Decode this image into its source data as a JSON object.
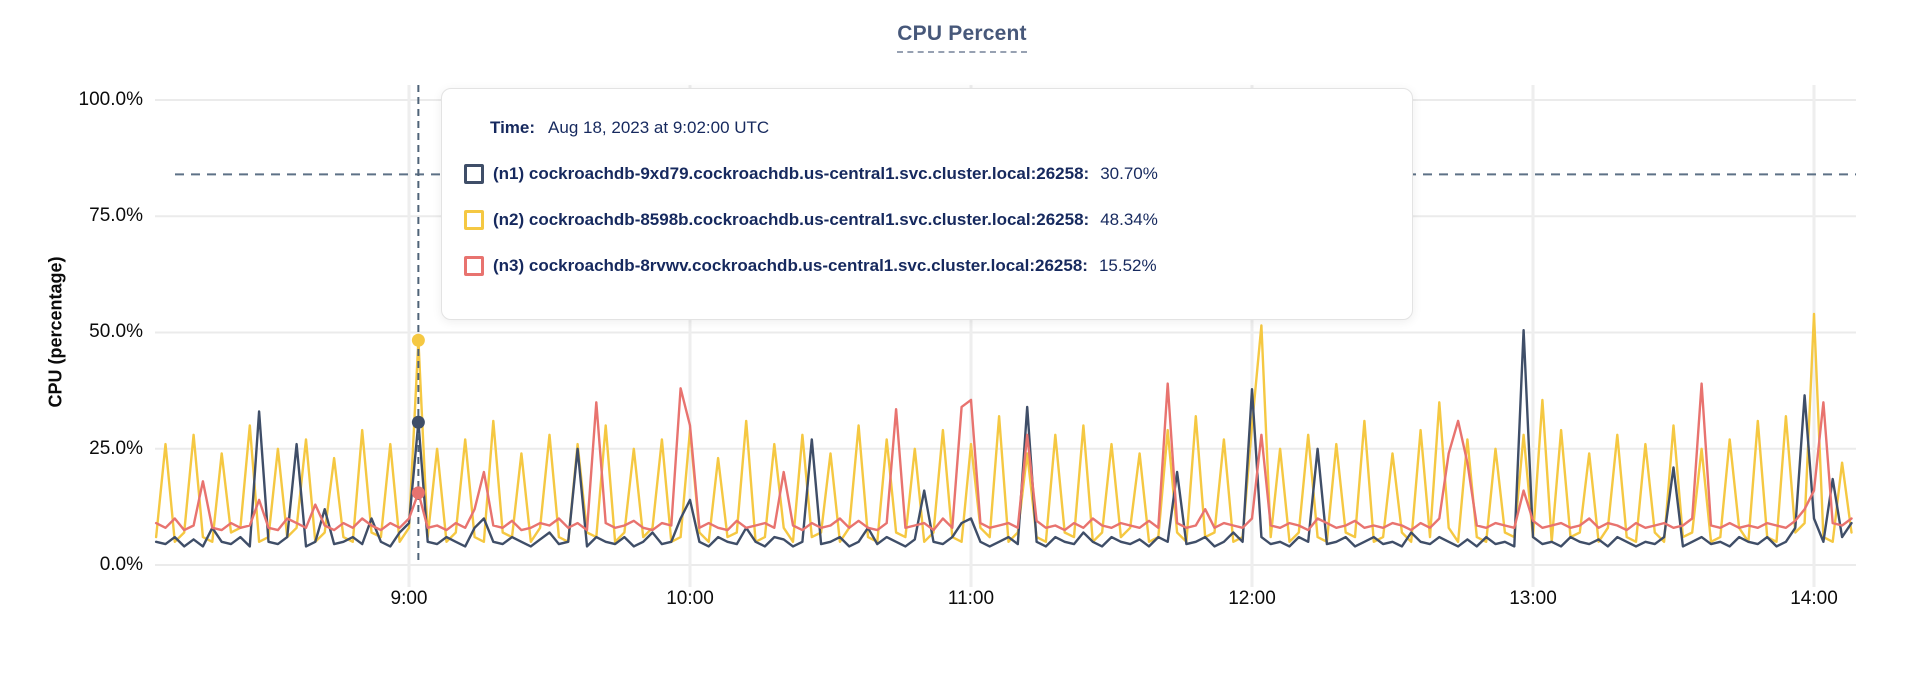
{
  "title": "CPU Percent",
  "y_axis_title": "CPU (percentage)",
  "tooltip": {
    "time_label": "Time:",
    "time_value": "Aug 18, 2023 at 9:02:00 UTC",
    "values": [
      "30.70%",
      "48.34%",
      "15.52%"
    ]
  },
  "chart_data": {
    "type": "line",
    "title": "CPU Percent",
    "xlabel": "",
    "ylabel": "CPU (percentage)",
    "ylim": [
      0,
      100
    ],
    "grid": true,
    "y_ticks": [
      "100.0%",
      "75.0%",
      "50.0%",
      "25.0%",
      "0.0%"
    ],
    "x_ticks": [
      "9:00",
      "10:00",
      "11:00",
      "12:00",
      "13:00",
      "14:00"
    ],
    "x_start": "8:06",
    "x_end": "14:08",
    "interval_minutes": 2,
    "annotations": {
      "threshold_line_percent": 84,
      "threshold_line_style": "dashed",
      "crosshair_time": "9:02",
      "crosshair_values": [
        30.7,
        48.34,
        15.52
      ]
    },
    "series": [
      {
        "name": "(n1) cockroachdb-9xd79.cockroachdb.us-central1.svc.cluster.local:26258:",
        "color": "#3f4e68",
        "values": [
          5,
          4.5,
          6,
          4,
          5.5,
          4,
          8,
          5,
          4.5,
          6,
          4,
          33,
          5,
          4.5,
          6,
          26,
          4,
          5,
          12,
          4.5,
          5,
          6,
          4.5,
          10,
          5,
          4,
          7,
          9,
          30.7,
          5,
          4.5,
          6,
          5,
          4,
          8,
          10,
          5,
          4.5,
          6,
          5,
          4,
          5.5,
          7,
          4.5,
          5,
          25,
          4,
          6,
          5,
          4.5,
          6,
          4,
          5,
          7,
          4.5,
          5,
          10,
          14,
          5,
          4,
          6,
          5,
          4.5,
          8,
          5,
          4,
          6,
          5.5,
          4,
          5,
          27,
          4.5,
          5,
          6,
          4,
          5,
          8,
          4.5,
          6,
          5,
          4,
          5.5,
          16,
          5,
          4.5,
          6,
          9,
          10,
          5,
          4,
          5,
          6,
          4.5,
          34,
          5,
          4,
          6,
          5,
          4.5,
          7,
          5,
          4,
          6,
          5,
          4.5,
          5.5,
          4,
          6,
          5,
          20,
          4.5,
          5,
          6,
          4,
          5,
          7,
          5,
          37.8,
          6,
          4.5,
          5,
          4,
          6,
          5,
          25,
          4.5,
          5,
          6,
          4,
          5,
          6,
          4.5,
          5,
          4,
          7,
          5,
          4.5,
          6,
          5,
          4,
          5.5,
          4,
          6,
          4.5,
          5,
          4,
          50.5,
          6,
          4.5,
          5,
          4,
          6,
          5,
          4.5,
          5.5,
          4,
          6,
          5,
          4,
          5,
          4.5,
          6,
          21,
          4,
          5,
          6,
          4.5,
          5,
          4,
          6,
          5,
          4.5,
          6,
          4,
          5,
          8,
          36.5,
          10,
          5,
          18.5,
          6,
          9
        ]
      },
      {
        "name": "(n2) cockroachdb-8598b.cockroachdb.us-central1.svc.cluster.local:26258:",
        "color": "#f5c842",
        "values": [
          6,
          26,
          5,
          7,
          28,
          6,
          5,
          24,
          7,
          8,
          30,
          5,
          6,
          25,
          6,
          8,
          27,
          5,
          7,
          23,
          6,
          5,
          29,
          7,
          6,
          26,
          5,
          8,
          48.34,
          6,
          25,
          5,
          7,
          27,
          6,
          5,
          31,
          7,
          6,
          24,
          5,
          8,
          28,
          6,
          5,
          26,
          7,
          6,
          30,
          5,
          7,
          25,
          6,
          8,
          27,
          5,
          6,
          29,
          7,
          5,
          23,
          6,
          7,
          31,
          5,
          6,
          26,
          8,
          5,
          28,
          6,
          7,
          24,
          5,
          8,
          30,
          6,
          5,
          27,
          7,
          6,
          25,
          5,
          7,
          29,
          6,
          5,
          26,
          8,
          6,
          32,
          5,
          7,
          24,
          6,
          5,
          28,
          7,
          6,
          30,
          5,
          7,
          26,
          6,
          8,
          24,
          5,
          6,
          29,
          7,
          5,
          32,
          6,
          7,
          27,
          5,
          6,
          30,
          51.5,
          6,
          25,
          5,
          7,
          28,
          6,
          5,
          26,
          7,
          6,
          31,
          5,
          6,
          24,
          7,
          5,
          29,
          6,
          35,
          8,
          5,
          27,
          6,
          5,
          25,
          7,
          6,
          28,
          6,
          35.5,
          5,
          29,
          6,
          7,
          24,
          5,
          8,
          28,
          6,
          5,
          26,
          7,
          5,
          30,
          6,
          7,
          25,
          5,
          6,
          27,
          8,
          5,
          31,
          6,
          5,
          32,
          7,
          9,
          54,
          6,
          5,
          22,
          7
        ]
      },
      {
        "name": "(n3) cockroachdb-8rvwv.cockroachdb.us-central1.svc.cluster.local:26258:",
        "color": "#e8736f",
        "values": [
          9,
          8,
          10,
          7.5,
          8.5,
          18,
          8,
          7.5,
          9,
          8,
          8.5,
          14,
          8,
          7.5,
          10,
          9,
          8,
          13,
          8.5,
          7.5,
          9,
          8,
          10,
          8.5,
          7.5,
          9,
          8,
          10,
          15.52,
          8,
          8.5,
          7.5,
          9,
          8,
          12,
          20,
          8.5,
          8,
          9.5,
          7.5,
          8,
          9,
          8.5,
          10,
          8,
          9,
          7.5,
          35,
          9,
          8,
          8.5,
          9.5,
          8,
          7.5,
          9,
          8.5,
          38,
          30,
          8,
          9,
          8,
          7.5,
          9.5,
          8,
          8.5,
          9,
          8,
          20,
          8.5,
          7.5,
          9,
          8,
          8.5,
          10,
          8,
          9.5,
          8,
          7.5,
          9,
          33.5,
          8,
          8.5,
          9,
          7.5,
          10,
          8,
          34,
          35.5,
          9,
          8,
          8.5,
          9,
          8,
          28,
          9.5,
          8,
          8.5,
          7.5,
          9,
          8,
          10,
          8.5,
          8,
          9,
          8.5,
          8,
          9.5,
          8,
          39,
          9,
          8,
          8.5,
          12,
          8,
          9,
          8.5,
          8,
          10,
          28,
          8.5,
          8,
          9,
          8.5,
          7.5,
          10,
          9,
          8,
          8.5,
          9.5,
          8,
          8.5,
          8,
          9,
          8.5,
          7.5,
          9,
          8,
          10,
          24,
          31,
          22,
          8.5,
          8,
          9,
          8.5,
          8,
          16,
          9.5,
          8,
          8.5,
          9,
          8,
          8.5,
          10,
          8,
          9,
          8.5,
          7.5,
          9,
          8,
          8.5,
          9,
          8,
          8.5,
          10,
          39,
          8.5,
          8,
          9,
          8,
          8.5,
          8,
          9,
          8.5,
          8,
          9.5,
          12,
          16,
          35,
          9,
          8.5,
          10
        ]
      }
    ]
  },
  "colors": {
    "n1_line": "#3f4e68",
    "n2_line": "#f5c842",
    "n3_line": "#e8736f",
    "grid": "#ececec",
    "crosshair": "#4f6378",
    "threshold": "#5d7186",
    "title": "#47587a",
    "tooltip_text": "#16295e"
  }
}
